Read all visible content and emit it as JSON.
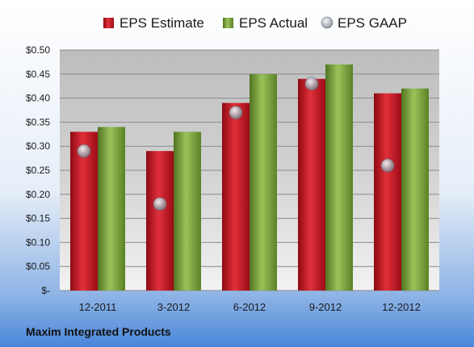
{
  "company": "Maxim Integrated Products",
  "colors": {
    "estimate": "#c8102e",
    "actual": "#7aa23a",
    "gaap": "#9aa3ad",
    "background_top": "#ffffff",
    "background_bottom": "#4a86d8"
  },
  "chart_data": {
    "type": "bar",
    "categories": [
      "12-2011",
      "3-2012",
      "6-2012",
      "9-2012",
      "12-2012"
    ],
    "series": [
      {
        "name": "EPS Estimate",
        "kind": "bar",
        "values": [
          0.33,
          0.29,
          0.39,
          0.44,
          0.41
        ]
      },
      {
        "name": "EPS Actual",
        "kind": "bar",
        "values": [
          0.34,
          0.33,
          0.45,
          0.47,
          0.42
        ]
      },
      {
        "name": "EPS GAAP",
        "kind": "scatter",
        "values": [
          0.29,
          0.18,
          0.37,
          0.43,
          0.26
        ]
      }
    ],
    "yticks": [
      "$-",
      "$0.05",
      "$0.10",
      "$0.15",
      "$0.20",
      "$0.25",
      "$0.30",
      "$0.35",
      "$0.40",
      "$0.45",
      "$0.50"
    ],
    "ylim": [
      0,
      0.5
    ],
    "grid": true,
    "legend_position": "top"
  }
}
